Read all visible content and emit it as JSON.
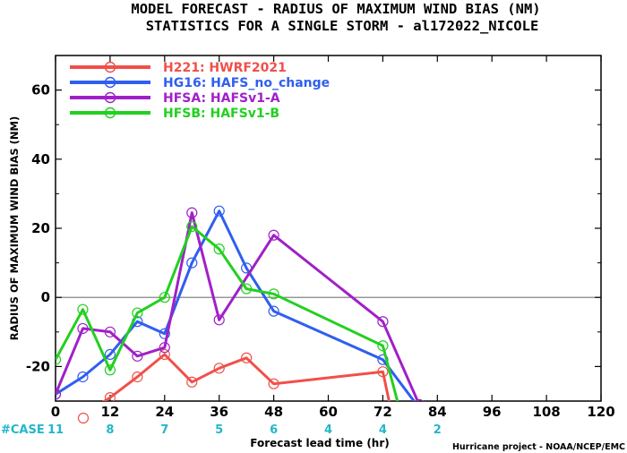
{
  "chart_data": {
    "type": "line",
    "title": "MODEL FORECAST - RADIUS OF MAXIMUM WIND BIAS (NM)",
    "subtitle": "STATISTICS FOR A SINGLE STORM - al172022_NICOLE",
    "xlabel": "Forecast lead time (hr)",
    "ylabel": "RADIUS OF MAXIMUM WIND BIAS (NM)",
    "xlim": [
      0,
      120
    ],
    "ylim": [
      -30,
      70
    ],
    "x_ticks": [
      0,
      12,
      24,
      36,
      48,
      60,
      72,
      84,
      96,
      108,
      120
    ],
    "y_ticks": [
      -20,
      0,
      20,
      40,
      60
    ],
    "zero_line": true,
    "legend_position": "top-left",
    "series": [
      {
        "name": "H221: HWRF2021",
        "color": "#f0504a",
        "x": [
          0,
          6,
          12,
          18,
          24,
          30,
          36,
          42,
          48,
          72,
          75
        ],
        "y": [
          -32,
          -34,
          -29,
          -23,
          -16.5,
          -24.5,
          -20.5,
          -17.5,
          -25,
          -21.5,
          -40
        ]
      },
      {
        "name": "HG16: HAFS_no_change",
        "color": "#2f5ef0",
        "x": [
          0,
          6,
          12,
          18,
          24,
          30,
          36,
          42,
          48,
          72,
          80
        ],
        "y": [
          -28,
          -23,
          -16.5,
          -7,
          -10.5,
          10,
          25,
          8.5,
          -4,
          -18,
          -32
        ]
      },
      {
        "name": "HFSA: HAFSv1-A",
        "color": "#a020c8",
        "x": [
          0,
          6,
          12,
          18,
          24,
          30,
          36,
          48,
          72,
          80
        ],
        "y": [
          -28,
          -9,
          -10,
          -17,
          -14.5,
          24.5,
          -6.5,
          18,
          -7,
          -31
        ]
      },
      {
        "name": "HFSB: HAFSv1-B",
        "color": "#22d020",
        "x": [
          0,
          6,
          12,
          18,
          24,
          30,
          36,
          42,
          48,
          72,
          76
        ],
        "y": [
          -18,
          -3.5,
          -21,
          -4.5,
          0,
          20.5,
          14,
          2.5,
          1,
          -14,
          -34
        ]
      }
    ],
    "case_label": "#CASE",
    "case_counts": [
      {
        "x": 0,
        "label": "11"
      },
      {
        "x": 12,
        "label": "8"
      },
      {
        "x": 24,
        "label": "7"
      },
      {
        "x": 36,
        "label": "5"
      },
      {
        "x": 48,
        "label": "6"
      },
      {
        "x": 60,
        "label": "4"
      },
      {
        "x": 72,
        "label": "4"
      },
      {
        "x": 84,
        "label": "2"
      }
    ],
    "annotations": {
      "credit": "Hurricane project - NOAA/NCEP/EMC"
    }
  }
}
